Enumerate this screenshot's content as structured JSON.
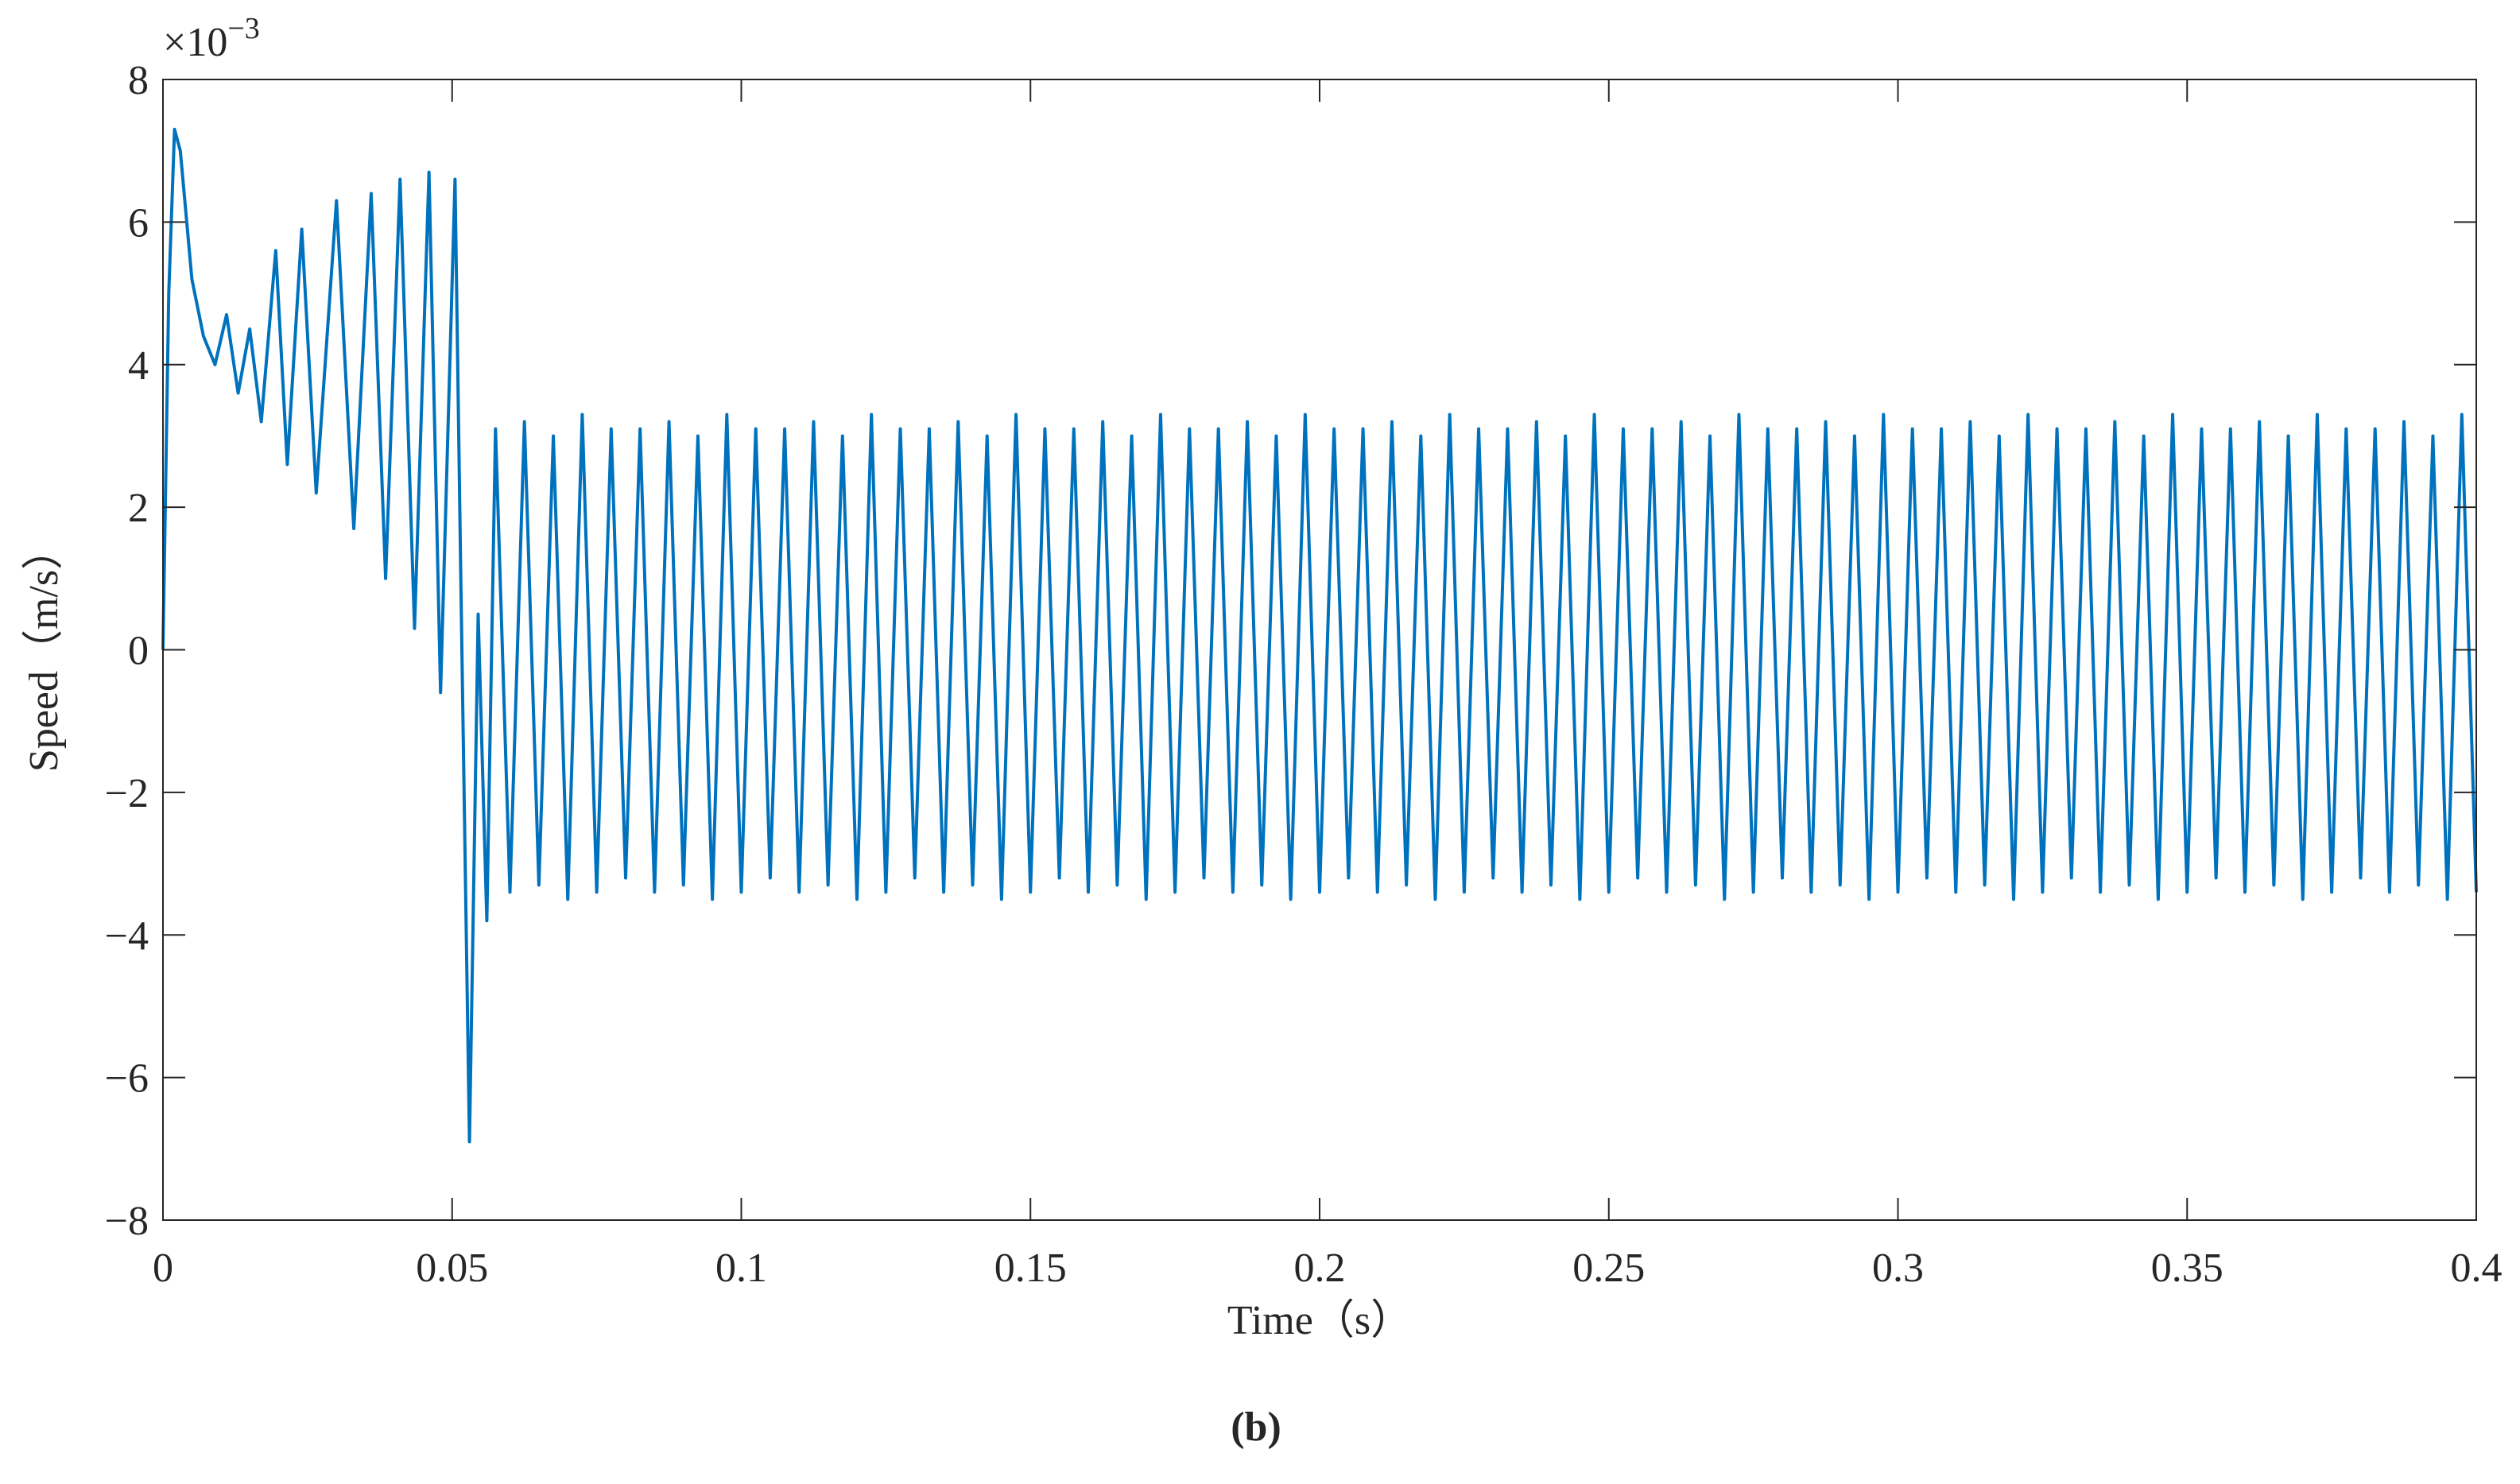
{
  "chart_data": {
    "type": "line",
    "panel_label": "(b)",
    "xlabel": "Time（s）",
    "ylabel": "Speed（m/s）",
    "y_multiplier": "×10",
    "y_multiplier_exponent": "−3",
    "xlim": [
      0,
      0.4
    ],
    "xticks": [
      0,
      0.05,
      0.1,
      0.15,
      0.2,
      0.25,
      0.3,
      0.35,
      0.4
    ],
    "ylim": [
      -8,
      8
    ],
    "yticks": [
      {
        "value": -8,
        "label": "−8"
      },
      {
        "value": -6,
        "label": "−6"
      },
      {
        "value": -4,
        "label": "−4"
      },
      {
        "value": -2,
        "label": "−2"
      },
      0,
      2,
      4,
      6,
      8
    ],
    "grid": false,
    "x": [
      0,
      0.001,
      0.002,
      0.003,
      0.005,
      0.007,
      0.009,
      0.011,
      0.013,
      0.015,
      0.017,
      0.0195,
      0.0215,
      0.024,
      0.0265,
      0.03,
      0.033,
      0.036,
      0.0385,
      0.041,
      0.0435,
      0.046,
      0.048,
      0.0505,
      0.0515,
      0.053,
      0.0545,
      0.056,
      0.0575,
      0.06,
      0.0625,
      0.065,
      0.0675,
      0.07,
      0.0725,
      0.075,
      0.0775,
      0.08,
      0.0825,
      0.085,
      0.0875,
      0.09,
      0.0925,
      0.095,
      0.0975,
      0.1,
      0.1025,
      0.105,
      0.1075,
      0.11,
      0.1125,
      0.115,
      0.1175,
      0.12,
      0.1225,
      0.125,
      0.1275,
      0.13,
      0.1325,
      0.135,
      0.1375,
      0.14,
      0.1425,
      0.145,
      0.1475,
      0.15,
      0.1525,
      0.155,
      0.1575,
      0.16,
      0.1625,
      0.165,
      0.1675,
      0.17,
      0.1725,
      0.175,
      0.1775,
      0.18,
      0.1825,
      0.185,
      0.1875,
      0.19,
      0.1925,
      0.195,
      0.1975,
      0.2,
      0.2025,
      0.205,
      0.2075,
      0.21,
      0.2125,
      0.215,
      0.2175,
      0.22,
      0.2225,
      0.225,
      0.2275,
      0.23,
      0.2325,
      0.235,
      0.2375,
      0.24,
      0.2425,
      0.245,
      0.2475,
      0.25,
      0.2525,
      0.255,
      0.2575,
      0.26,
      0.2625,
      0.265,
      0.2675,
      0.27,
      0.2725,
      0.275,
      0.2775,
      0.28,
      0.2825,
      0.285,
      0.2875,
      0.29,
      0.2925,
      0.295,
      0.2975,
      0.3,
      0.3025,
      0.305,
      0.3075,
      0.31,
      0.3125,
      0.315,
      0.3175,
      0.32,
      0.3225,
      0.325,
      0.3275,
      0.33,
      0.3325,
      0.335,
      0.3375,
      0.34,
      0.3425,
      0.345,
      0.3475,
      0.35,
      0.3525,
      0.355,
      0.3575,
      0.36,
      0.3625,
      0.365,
      0.3675,
      0.37,
      0.3725,
      0.375,
      0.3775,
      0.38,
      0.3825,
      0.385,
      0.3875,
      0.39,
      0.3925,
      0.395,
      0.3975,
      0.4
    ],
    "series": [
      {
        "color": "#0072bd",
        "values": [
          0,
          5.0,
          7.3,
          7.0,
          5.2,
          4.4,
          4.0,
          4.7,
          3.6,
          4.5,
          3.2,
          5.6,
          2.6,
          5.9,
          2.2,
          6.3,
          1.7,
          6.4,
          1.0,
          6.6,
          0.3,
          6.7,
          -0.6,
          6.6,
          1.0,
          -6.9,
          0.5,
          -3.8,
          3.1,
          -3.4,
          3.2,
          -3.3,
          3.0,
          -3.5,
          3.3,
          -3.4,
          3.1,
          -3.2,
          3.1,
          -3.4,
          3.2,
          -3.3,
          3.0,
          -3.5,
          3.3,
          -3.4,
          3.1,
          -3.2,
          3.1,
          -3.4,
          3.2,
          -3.3,
          3.0,
          -3.5,
          3.3,
          -3.4,
          3.1,
          -3.2,
          3.1,
          -3.4,
          3.2,
          -3.3,
          3.0,
          -3.5,
          3.3,
          -3.4,
          3.1,
          -3.2,
          3.1,
          -3.4,
          3.2,
          -3.3,
          3.0,
          -3.5,
          3.3,
          -3.4,
          3.1,
          -3.2,
          3.1,
          -3.4,
          3.2,
          -3.3,
          3.0,
          -3.5,
          3.3,
          -3.4,
          3.1,
          -3.2,
          3.1,
          -3.4,
          3.2,
          -3.3,
          3.0,
          -3.5,
          3.3,
          -3.4,
          3.1,
          -3.2,
          3.1,
          -3.4,
          3.2,
          -3.3,
          3.0,
          -3.5,
          3.3,
          -3.4,
          3.1,
          -3.2,
          3.1,
          -3.4,
          3.2,
          -3.3,
          3.0,
          -3.5,
          3.3,
          -3.4,
          3.1,
          -3.2,
          3.1,
          -3.4,
          3.2,
          -3.3,
          3.0,
          -3.5,
          3.3,
          -3.4,
          3.1,
          -3.2,
          3.1,
          -3.4,
          3.2,
          -3.3,
          3.0,
          -3.5,
          3.3,
          -3.4,
          3.1,
          -3.2,
          3.1,
          -3.4,
          3.2,
          -3.3,
          3.0,
          -3.5,
          3.3,
          -3.4,
          3.1,
          -3.2,
          3.1,
          -3.4,
          3.2,
          -3.3,
          3.0,
          -3.5,
          3.3,
          -3.4,
          3.1,
          -3.2,
          3.1,
          -3.4,
          3.2,
          -3.3,
          3.0,
          -3.5,
          3.3,
          -3.4
        ]
      }
    ]
  }
}
